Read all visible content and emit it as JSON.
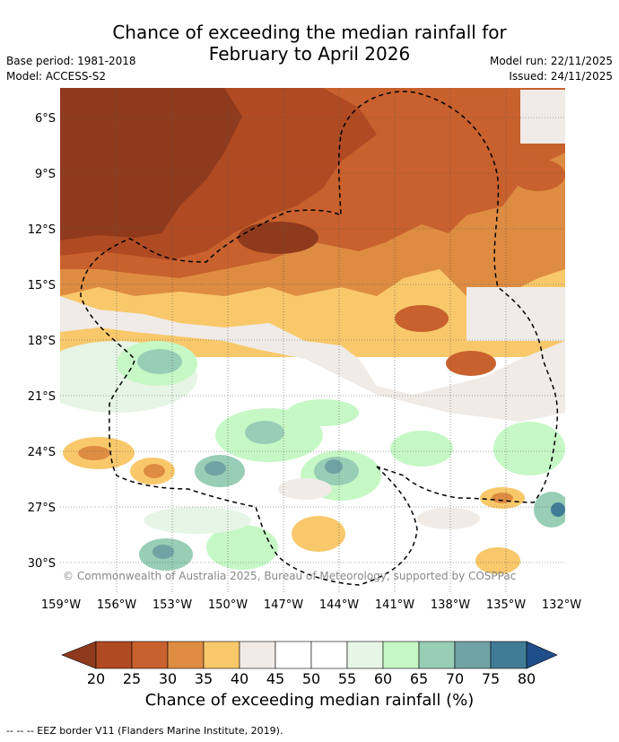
{
  "title": {
    "line1": "Chance of exceeding the median rainfall for",
    "line2": "February to April 2026"
  },
  "meta": {
    "base_period": "Base period: 1981-2018",
    "model": "Model: ACCESS-S2",
    "model_run": "Model run: 22/11/2025",
    "issued": "Issued: 24/11/2025"
  },
  "map": {
    "lat_labels": [
      "6°S",
      "9°S",
      "12°S",
      "15°S",
      "18°S",
      "21°S",
      "24°S",
      "27°S",
      "30°S"
    ],
    "lon_labels": [
      "159°W",
      "156°W",
      "153°W",
      "150°W",
      "147°W",
      "144°W",
      "141°W",
      "138°W",
      "135°W",
      "132°W"
    ],
    "copyright": "© Commonwealth of Australia 2025, Bureau of Meteorology, supported by COSPPac"
  },
  "colorbar": {
    "ticks": [
      "20",
      "25",
      "30",
      "35",
      "40",
      "45",
      "50",
      "55",
      "60",
      "65",
      "70",
      "75",
      "80"
    ],
    "colors": [
      "#8f3a1d",
      "#b04a22",
      "#c8612d",
      "#de8c42",
      "#f9c86b",
      "#f0ebe7",
      "#ffffff",
      "#ffffff",
      "#e6f5e6",
      "#c6f8c6",
      "#98cdb6",
      "#6fa3a4",
      "#417c96",
      "#1f4e8a"
    ],
    "label": "Chance of exceeding median rainfall (%)"
  },
  "footnote": "--  --  -- EEZ border V11 (Flanders Marine Institute, 2019)."
}
